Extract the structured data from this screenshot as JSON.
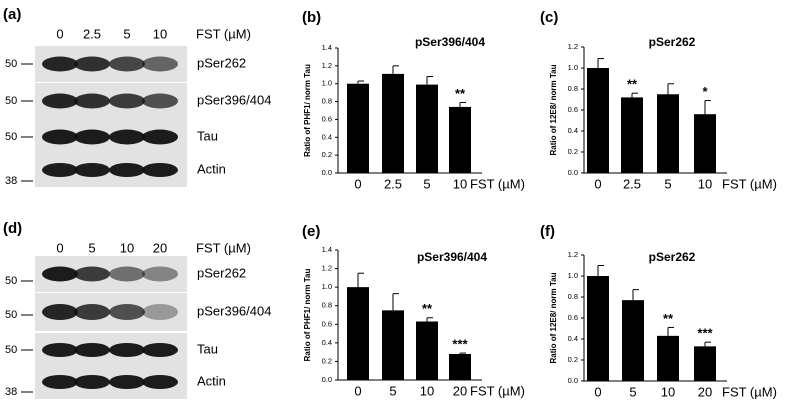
{
  "blots": [
    {
      "label": "(a)",
      "lanes": [
        "0",
        "2.5",
        "5",
        "10"
      ],
      "unit": "FST (µM)",
      "rows": [
        "pSer262",
        "pSer396/404",
        "Tau",
        "Actin"
      ],
      "markers": [
        "50",
        "50",
        "50",
        "38"
      ]
    },
    {
      "label": "(d)",
      "lanes": [
        "0",
        "5",
        "10",
        "20"
      ],
      "unit": "FST (µM)",
      "rows": [
        "pSer262",
        "pSer396/404",
        "Tau",
        "Actin"
      ],
      "markers": [
        "50",
        "50",
        "50",
        "38"
      ]
    }
  ],
  "chart_data": [
    {
      "type": "bar",
      "label": "(b)",
      "title": "pSer396/404",
      "y_label": "Ratio of PHF1/ norm Tau",
      "x_label": "FST (µM)",
      "categories": [
        "0",
        "2.5",
        "5",
        "10"
      ],
      "values": [
        1.0,
        1.11,
        0.99,
        0.74
      ],
      "errors": [
        0.03,
        0.09,
        0.09,
        0.05
      ],
      "annotations": [
        null,
        null,
        null,
        "**"
      ],
      "color": "#000000",
      "ylim": [
        0,
        1.4
      ],
      "yticks": [
        {
          "value": 0,
          "label": "0.0"
        },
        0.2,
        0.4,
        0.6,
        0.8,
        {
          "value": 1,
          "label": "1.0"
        },
        1.2,
        1.4
      ]
    },
    {
      "type": "bar",
      "label": "(c)",
      "title": "pSer262",
      "y_label": "Ratio of 12E8/ norm Tau",
      "x_label": "FST (µM)",
      "categories": [
        "0",
        "2.5",
        "5",
        "10"
      ],
      "values": [
        1.0,
        0.72,
        0.75,
        0.56
      ],
      "errors": [
        0.09,
        0.04,
        0.1,
        0.13
      ],
      "annotations": [
        null,
        "**",
        null,
        "*"
      ],
      "color": "#000000",
      "ylim": [
        0,
        1.2
      ],
      "yticks": [
        {
          "value": 0,
          "label": "0.0"
        },
        0.2,
        0.4,
        0.6,
        0.8,
        {
          "value": 1,
          "label": "1.0"
        },
        1.2
      ]
    },
    {
      "type": "bar",
      "label": "(e)",
      "title": "pSer396/404",
      "y_label": "Ratio of PHF1/ norm Tau",
      "x_label": "FST (µM)",
      "categories": [
        "0",
        "5",
        "10",
        "20"
      ],
      "values": [
        1.0,
        0.75,
        0.63,
        0.28
      ],
      "errors": [
        0.15,
        0.18,
        0.04,
        0.01
      ],
      "annotations": [
        null,
        null,
        "**",
        "***"
      ],
      "color": "#000000",
      "ylim": [
        0,
        1.4
      ],
      "yticks": [
        {
          "value": 0,
          "label": "0.0"
        },
        0.2,
        0.4,
        0.6,
        0.8,
        {
          "value": 1,
          "label": "1.0"
        },
        1.2,
        1.4
      ]
    },
    {
      "type": "bar",
      "label": "(f)",
      "title": "pSer262",
      "y_label": "Ratio of 12E8/ norm Tau",
      "x_label": "FST (µM)",
      "categories": [
        "0",
        "5",
        "10",
        "20"
      ],
      "values": [
        1.0,
        0.77,
        0.43,
        0.33
      ],
      "errors": [
        0.1,
        0.1,
        0.08,
        0.04
      ],
      "annotations": [
        null,
        null,
        "**",
        "***"
      ],
      "color": "#000000",
      "ylim": [
        0,
        1.2
      ],
      "yticks": [
        {
          "value": 0,
          "label": "0.0"
        },
        0.2,
        0.4,
        0.6,
        0.8,
        {
          "value": 1,
          "label": "1.0"
        },
        1.2
      ]
    }
  ]
}
